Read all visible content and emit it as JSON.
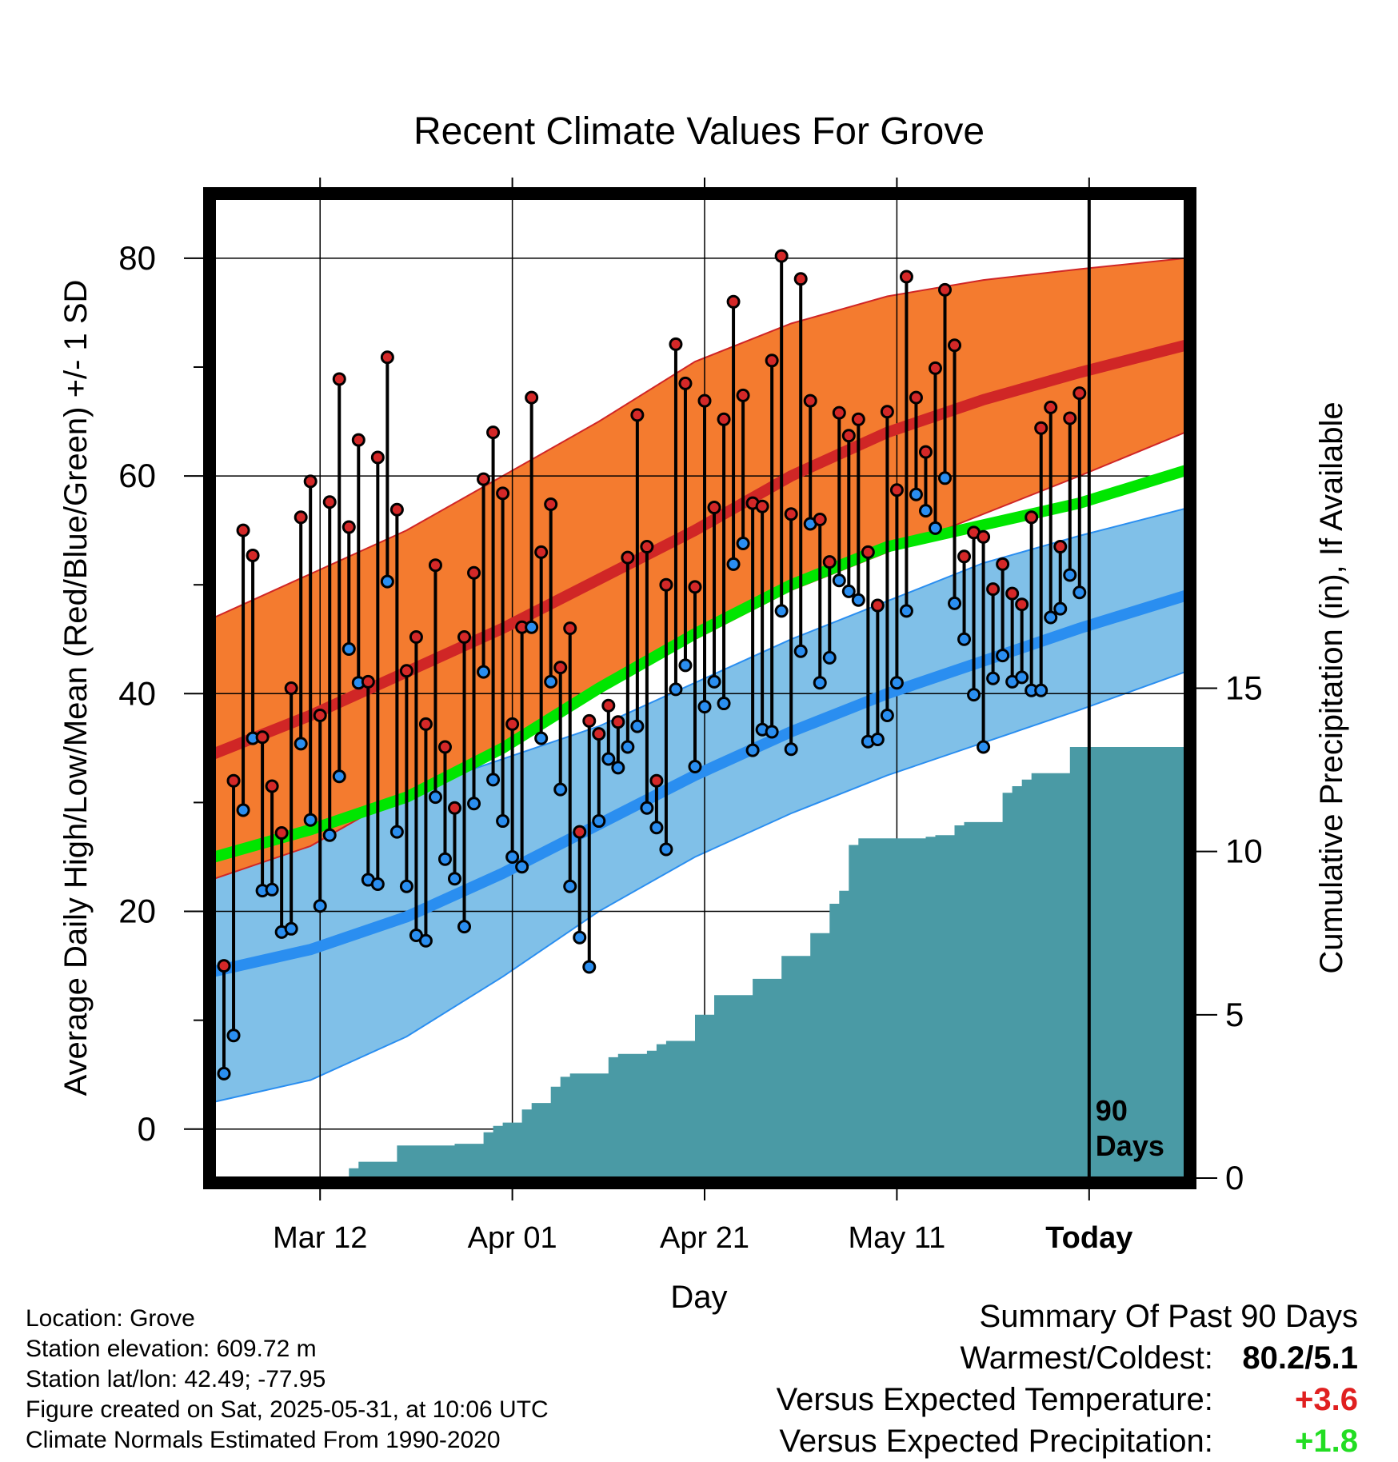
{
  "chart_data": {
    "type": "line",
    "title": "Recent Climate Values For Grove",
    "xlabel": "Day",
    "ylabel": "Average Daily High/Low/Mean (Red/Blue/Green) +/- 1 SD",
    "y2label": "Cumulative Precipitation (in), If Available",
    "x_tick_labels": [
      "Mar 12",
      "Apr 01",
      "Apr 21",
      "May 11",
      "Today"
    ],
    "x_tick_days": [
      11,
      31,
      51,
      71,
      91
    ],
    "xlim_days": [
      0,
      101
    ],
    "ylim": [
      -4.5,
      85.5
    ],
    "y_ticks": [
      0,
      20,
      40,
      60,
      80
    ],
    "y2lim": [
      0,
      30
    ],
    "y2_ticks": [
      0,
      5,
      10,
      15
    ],
    "today_marker": "90\nDays",
    "today_marker_lines": [
      "90",
      "Days"
    ],
    "grid": true,
    "colors": {
      "high_band": "#f47b2f",
      "high_mean": "#d02626",
      "low_band": "#80c0e8",
      "low_mean": "#2a8ef0",
      "mean": "#00e600",
      "precip": "#4a9aa5",
      "high_dot": "#d42828",
      "low_dot": "#2a8ef0"
    },
    "normals": {
      "days": [
        0,
        10,
        20,
        30,
        40,
        50,
        60,
        70,
        80,
        90,
        101
      ],
      "high_upper": [
        47,
        51,
        55,
        60,
        65,
        70.5,
        74,
        76.5,
        78,
        79,
        80
      ],
      "high_mean": [
        34.5,
        38,
        42,
        46,
        50.5,
        55,
        60,
        64,
        67,
        69.5,
        72
      ],
      "high_lower": [
        23,
        26,
        31,
        35,
        40.5,
        45,
        49.5,
        53,
        56.5,
        60,
        64
      ],
      "mean": [
        25,
        27.5,
        30.5,
        35,
        40.5,
        45.5,
        50,
        53.5,
        55.5,
        57.5,
        60.5
      ],
      "low_upper": [
        27,
        29,
        31,
        34,
        37,
        41,
        45,
        48.5,
        52,
        54.5,
        57
      ],
      "low_mean": [
        14.5,
        16.5,
        19.5,
        23.5,
        28,
        32.5,
        36.5,
        40,
        43,
        46,
        49
      ],
      "low_lower": [
        2.5,
        4.5,
        8.5,
        14,
        20,
        25,
        29,
        32.5,
        35.5,
        38.5,
        42
      ]
    },
    "series": [
      {
        "name": "High",
        "values": [
          15,
          32,
          55,
          52.7,
          36,
          31.5,
          27.2,
          40.5,
          56.2,
          59.5,
          38,
          57.6,
          68.9,
          55.3,
          63.3,
          41.1,
          61.7,
          70.9,
          56.9,
          42.1,
          45.2,
          37.2,
          51.8,
          35.1,
          29.5,
          45.2,
          51.1,
          59.7,
          64,
          58.4,
          37.2,
          46.1,
          67.2,
          53,
          57.4,
          42.4,
          46,
          27.3,
          37.5,
          36.3,
          38.9,
          37.4,
          52.5,
          65.6,
          53.5,
          32,
          50,
          72.1,
          68.5,
          49.8,
          66.9,
          57.1,
          65.2,
          76,
          67.4,
          57.5,
          57.2,
          70.6,
          80.2,
          56.5,
          78.1,
          66.9,
          56,
          52.1,
          65.8,
          63.7,
          65.2,
          53,
          48.1,
          65.9,
          58.7,
          78.3,
          67.2,
          62.2,
          69.9,
          77.1,
          72,
          52.6,
          54.8,
          54.4,
          49.6,
          51.9,
          49.2,
          48.2,
          56.2,
          64.4,
          66.3,
          53.5,
          65.3,
          67.6
        ],
        "color": "#d42828"
      },
      {
        "name": "Low",
        "values": [
          5.1,
          8.6,
          29.3,
          35.9,
          21.9,
          22,
          18.1,
          18.4,
          35.4,
          28.4,
          20.5,
          27,
          32.4,
          44.1,
          41,
          22.9,
          22.5,
          50.3,
          27.3,
          22.3,
          17.8,
          17.3,
          30.5,
          24.8,
          23,
          18.6,
          29.9,
          42,
          32.1,
          28.3,
          25,
          24.1,
          46.1,
          35.9,
          41.1,
          31.2,
          22.3,
          17.6,
          14.9,
          28.3,
          34,
          33.2,
          35.1,
          37,
          29.5,
          27.7,
          25.7,
          40.4,
          42.6,
          33.3,
          38.8,
          41.1,
          39.1,
          51.9,
          53.8,
          34.8,
          36.7,
          36.5,
          47.6,
          34.9,
          43.9,
          55.6,
          41,
          43.3,
          50.4,
          49.4,
          48.6,
          35.6,
          35.8,
          38,
          41,
          47.6,
          58.3,
          56.8,
          55.2,
          59.8,
          48.3,
          45,
          39.9,
          35.1,
          41.4,
          43.5,
          41.1,
          41.5,
          40.3,
          40.3,
          47,
          47.8,
          50.9,
          49.3
        ],
        "color": "#2a8ef0"
      },
      {
        "name": "Cumulative Precipitation",
        "values": [
          0,
          0,
          0,
          0,
          0,
          0,
          0,
          0,
          0,
          0,
          0,
          0,
          0,
          0,
          0.3,
          0.5,
          0.5,
          0.5,
          0.5,
          1,
          1,
          1,
          1,
          1,
          1,
          1.05,
          1.05,
          1.05,
          1.4,
          1.6,
          1.7,
          1.7,
          2.1,
          2.3,
          2.3,
          2.8,
          3.1,
          3.2,
          3.2,
          3.2,
          3.2,
          3.7,
          3.8,
          3.8,
          3.8,
          3.9,
          4.1,
          4.2,
          4.2,
          4.2,
          5,
          5,
          5.6,
          5.6,
          5.6,
          5.6,
          6.1,
          6.1,
          6.1,
          6.8,
          6.8,
          6.8,
          7.5,
          7.5,
          8.4,
          8.8,
          10.2,
          10.4,
          10.4,
          10.4,
          10.4,
          10.4,
          10.4,
          10.4,
          10.45,
          10.5,
          10.5,
          10.8,
          10.9,
          10.9,
          10.9,
          10.9,
          11.8,
          12,
          12.2,
          12.4,
          12.4,
          12.4,
          12.4,
          13.2,
          13.2,
          13.2,
          13.2,
          13.2,
          13.2,
          13.2,
          13.2,
          13.2,
          13.2,
          13.2,
          13.2,
          13.2
        ],
        "color": "#4a9aa5"
      }
    ]
  },
  "footer": {
    "location": "Location: Grove",
    "elevation": "Station elevation: 609.72 m",
    "latlon": "Station lat/lon: 42.49; -77.95",
    "created": "Figure created on Sat, 2025-05-31, at 10:06 UTC",
    "normals": "Climate Normals Estimated From 1990-2020"
  },
  "summary": {
    "title": "Summary Of Past 90 Days",
    "warmest_label": "Warmest/Coldest:",
    "warmest_value": "80.2/5.1",
    "temp_label": "Versus Expected Temperature:",
    "temp_value": "+3.6",
    "temp_color": "#e02020",
    "precip_label": "Versus Expected Precipitation:",
    "precip_value": "+1.8",
    "precip_color": "#22dd22"
  }
}
